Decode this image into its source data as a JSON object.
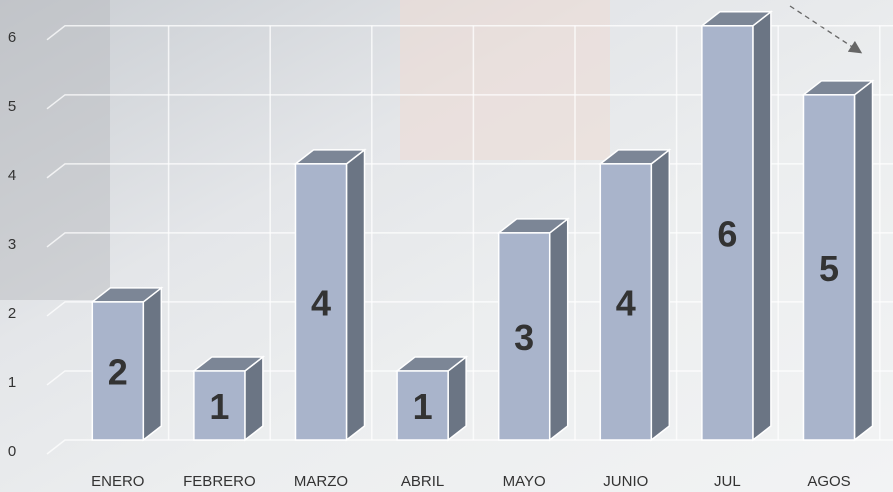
{
  "chart_data": {
    "type": "bar3d",
    "categories": [
      "ENERO",
      "FEBRERO",
      "MARZO",
      "ABRIL",
      "MAYO",
      "JUNIO",
      "JUL",
      "AGOS"
    ],
    "values": [
      2,
      1,
      4,
      1,
      3,
      4,
      6,
      5
    ],
    "color": "#a9b4cb",
    "ylim": [
      0,
      6
    ],
    "yticks": [
      0,
      1,
      2,
      3,
      4,
      5,
      6
    ],
    "grid": true
  }
}
